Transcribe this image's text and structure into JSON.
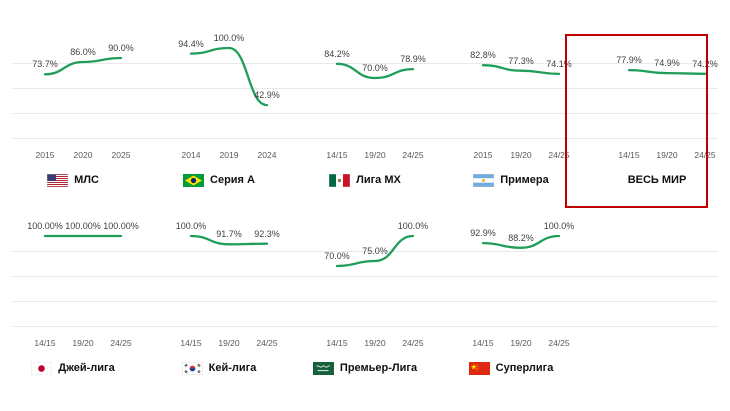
{
  "colors": {
    "line": "#1f9e5a",
    "grid": "#e9e9e9",
    "highlight": "#c00000",
    "label": "#3f3f3f",
    "axis": "#595959",
    "title": "#111111"
  },
  "chart_data": {
    "type": "line",
    "unit": "%",
    "grid": true,
    "legend": "none",
    "ylim": [
      40,
      105
    ],
    "panels": [
      {
        "name": "МЛС",
        "flag_icon": "flag-usa-icon",
        "categories": [
          "2015",
          "2020",
          "2025"
        ],
        "values": [
          73.7,
          86.0,
          90.0
        ],
        "labels": [
          "73.7%",
          "86.0%",
          "90.0%"
        ],
        "highlighted": false
      },
      {
        "name": "Серия А",
        "flag_icon": "flag-brazil-icon",
        "categories": [
          "2014",
          "2019",
          "2024"
        ],
        "values": [
          94.4,
          100.0,
          42.9
        ],
        "labels": [
          "94.4%",
          "100.0%",
          "42.9%"
        ],
        "highlighted": false
      },
      {
        "name": "Лига МХ",
        "flag_icon": "flag-mexico-icon",
        "categories": [
          "14/15",
          "19/20",
          "24/25"
        ],
        "values": [
          84.2,
          70.0,
          78.9
        ],
        "labels": [
          "84.2%",
          "70.0%",
          "78.9%"
        ],
        "highlighted": false
      },
      {
        "name": "Примера",
        "flag_icon": "flag-argentina-icon",
        "categories": [
          "2015",
          "19/20",
          "24/25"
        ],
        "values": [
          82.8,
          77.3,
          74.1
        ],
        "labels": [
          "82.8%",
          "77.3%",
          "74.1%"
        ],
        "highlighted": false
      },
      {
        "name": "ВЕСЬ МИР",
        "flag_icon": null,
        "categories": [
          "14/15",
          "19/20",
          "24/25"
        ],
        "values": [
          77.9,
          74.9,
          74.2
        ],
        "labels": [
          "77.9%",
          "74.9%",
          "74.2%"
        ],
        "highlighted": true
      },
      {
        "name": "Джей-лига",
        "flag_icon": "flag-japan-icon",
        "categories": [
          "14/15",
          "19/20",
          "24/25"
        ],
        "values": [
          100.0,
          100.0,
          100.0
        ],
        "labels": [
          "100.00%",
          "100.00%",
          "100.00%"
        ],
        "highlighted": false
      },
      {
        "name": "Кей-лига",
        "flag_icon": "flag-south-korea-icon",
        "categories": [
          "14/15",
          "19/20",
          "24/25"
        ],
        "values": [
          100.0,
          91.7,
          92.3
        ],
        "labels": [
          "100.0%",
          "91.7%",
          "92.3%"
        ],
        "highlighted": false
      },
      {
        "name": "Премьер-Лига",
        "flag_icon": "flag-saudi-arabia-icon",
        "categories": [
          "14/15",
          "19/20",
          "24/25"
        ],
        "values": [
          70.0,
          75.0,
          100.0
        ],
        "labels": [
          "70.0%",
          "75.0%",
          "100.0%"
        ],
        "highlighted": false
      },
      {
        "name": "Суперлига",
        "flag_icon": "flag-china-icon",
        "categories": [
          "14/15",
          "19/20",
          "24/25"
        ],
        "values": [
          92.9,
          88.2,
          100.0
        ],
        "labels": [
          "92.9%",
          "88.2%",
          "100.0%"
        ],
        "highlighted": false
      }
    ]
  }
}
